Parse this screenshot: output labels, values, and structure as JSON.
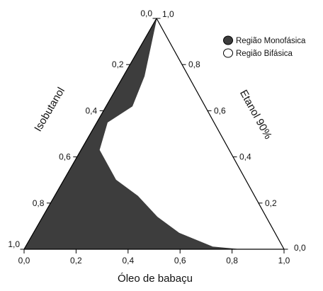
{
  "chart_data": {
    "type": "ternary-phase-diagram",
    "axes": {
      "left": {
        "label": "Isobutanol",
        "ticks": [
          "0,0",
          "0,2",
          "0,4",
          "0,6",
          "0,8",
          "1,0"
        ]
      },
      "right": {
        "label": "Etanol 90%",
        "ticks": [
          "1,0",
          "0,8",
          "0,6",
          "0,4",
          "0,2",
          "0,0"
        ]
      },
      "bottom": {
        "label": "Óleo de babaçu",
        "ticks": [
          "0,0",
          "0,2",
          "0,4",
          "0,6",
          "0,8",
          "1,0"
        ]
      }
    },
    "legend": {
      "placement": "top-right",
      "items": [
        {
          "label": "Região Monofásica",
          "fill": "#3d3d3d",
          "outline": "#000000"
        },
        {
          "label": "Região Bifásica",
          "fill": "#ffffff",
          "outline": "#000000"
        }
      ]
    },
    "regions": [
      {
        "name": "Região Monofásica",
        "color": "#3d3d3d",
        "boundary_oil_ethanol": [
          [
            0.0,
            1.0
          ],
          [
            0.08,
            0.75
          ],
          [
            0.1,
            0.62
          ],
          [
            0.04,
            0.55
          ],
          [
            0.07,
            0.43
          ],
          [
            0.2,
            0.3
          ],
          [
            0.32,
            0.23
          ],
          [
            0.44,
            0.14
          ],
          [
            0.56,
            0.07
          ],
          [
            0.72,
            0.01
          ],
          [
            0.82,
            0.0
          ],
          [
            0.9,
            0.0
          ],
          [
            0.95,
            0.0
          ]
        ]
      },
      {
        "name": "Região Bifásica",
        "color": "#ffffff"
      }
    ]
  }
}
